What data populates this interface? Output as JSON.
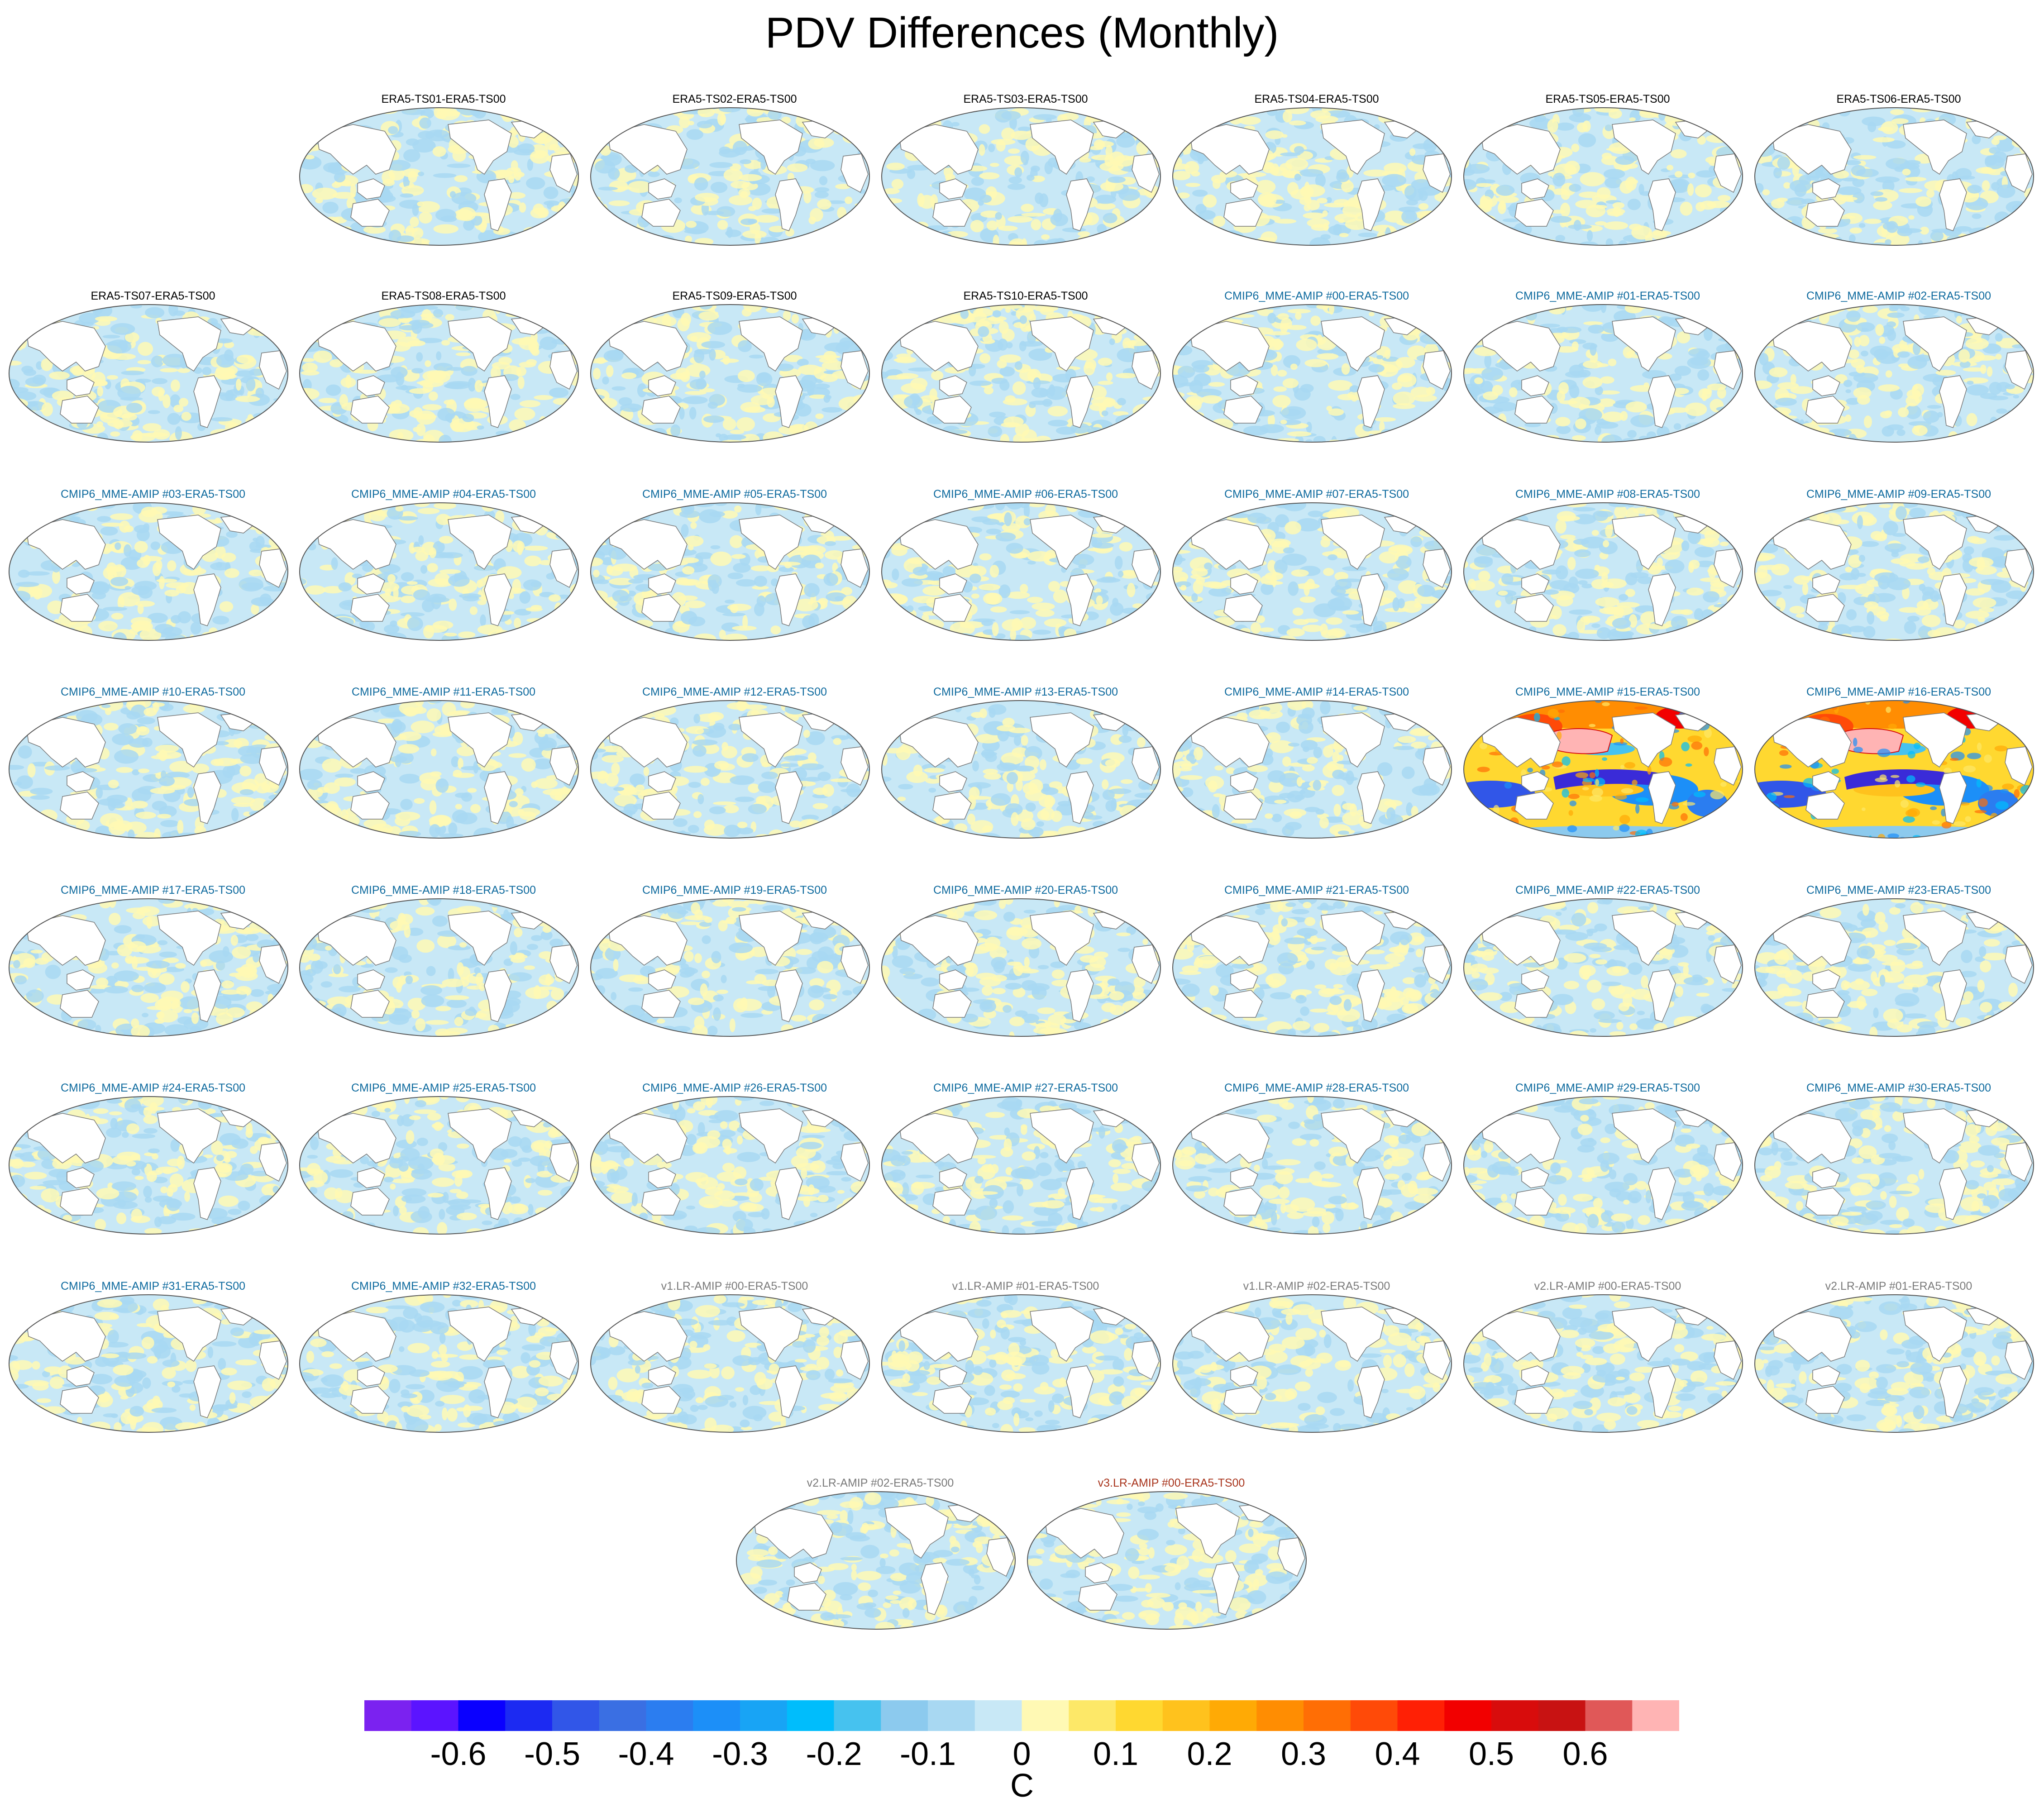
{
  "chart_data": {
    "type": "heatmap",
    "title": "PDV Differences (Monthly)",
    "projection": "Robinson (Pacific-centered global map)",
    "variable": "PDV difference",
    "units": "C",
    "colorbar": {
      "tick_labels": [
        "-0.6",
        "-0.5",
        "-0.4",
        "-0.3",
        "-0.2",
        "-0.1",
        "0",
        "0.1",
        "0.2",
        "0.3",
        "0.4",
        "0.5",
        "0.6"
      ],
      "colors": [
        "#7b22f0",
        "#5b14ff",
        "#0a00ff",
        "#1c2af2",
        "#3156e8",
        "#3a6fe3",
        "#2b7df0",
        "#1c8ff8",
        "#18a4f5",
        "#00bdfc",
        "#46c2ef",
        "#8ccaee",
        "#a8d8f2",
        "#c8e8f6",
        "#fff9b4",
        "#fde868",
        "#ffd830",
        "#ffc21d",
        "#ffaa05",
        "#ff8d02",
        "#ff6e05",
        "#ff4a08",
        "#ff2005",
        "#f20000",
        "#d80c0c",
        "#c81212",
        "#e05858",
        "#ffb4b4"
      ]
    },
    "panels": [
      {
        "label": "ERA5-TS01-ERA5-TS00",
        "group": "era5",
        "pattern": "noise"
      },
      {
        "label": "ERA5-TS02-ERA5-TS00",
        "group": "era5",
        "pattern": "noise"
      },
      {
        "label": "ERA5-TS03-ERA5-TS00",
        "group": "era5",
        "pattern": "noise"
      },
      {
        "label": "ERA5-TS04-ERA5-TS00",
        "group": "era5",
        "pattern": "noise"
      },
      {
        "label": "ERA5-TS05-ERA5-TS00",
        "group": "era5",
        "pattern": "noise"
      },
      {
        "label": "ERA5-TS06-ERA5-TS00",
        "group": "era5",
        "pattern": "noise"
      },
      {
        "label": "ERA5-TS07-ERA5-TS00",
        "group": "era5",
        "pattern": "noise"
      },
      {
        "label": "ERA5-TS08-ERA5-TS00",
        "group": "era5",
        "pattern": "noise"
      },
      {
        "label": "ERA5-TS09-ERA5-TS00",
        "group": "era5",
        "pattern": "noise"
      },
      {
        "label": "ERA5-TS10-ERA5-TS00",
        "group": "era5",
        "pattern": "noise"
      },
      {
        "label": "CMIP6_MME-AMIP  #00-ERA5-TS00",
        "group": "cmip6",
        "pattern": "noise"
      },
      {
        "label": "CMIP6_MME-AMIP  #01-ERA5-TS00",
        "group": "cmip6",
        "pattern": "noise"
      },
      {
        "label": "CMIP6_MME-AMIP  #02-ERA5-TS00",
        "group": "cmip6",
        "pattern": "noise"
      },
      {
        "label": "CMIP6_MME-AMIP  #03-ERA5-TS00",
        "group": "cmip6",
        "pattern": "noise"
      },
      {
        "label": "CMIP6_MME-AMIP  #04-ERA5-TS00",
        "group": "cmip6",
        "pattern": "noise"
      },
      {
        "label": "CMIP6_MME-AMIP  #05-ERA5-TS00",
        "group": "cmip6",
        "pattern": "noise"
      },
      {
        "label": "CMIP6_MME-AMIP  #06-ERA5-TS00",
        "group": "cmip6",
        "pattern": "noise"
      },
      {
        "label": "CMIP6_MME-AMIP  #07-ERA5-TS00",
        "group": "cmip6",
        "pattern": "noise"
      },
      {
        "label": "CMIP6_MME-AMIP  #08-ERA5-TS00",
        "group": "cmip6",
        "pattern": "noise"
      },
      {
        "label": "CMIP6_MME-AMIP  #09-ERA5-TS00",
        "group": "cmip6",
        "pattern": "noise"
      },
      {
        "label": "CMIP6_MME-AMIP  #10-ERA5-TS00",
        "group": "cmip6",
        "pattern": "noise"
      },
      {
        "label": "CMIP6_MME-AMIP  #11-ERA5-TS00",
        "group": "cmip6",
        "pattern": "noise"
      },
      {
        "label": "CMIP6_MME-AMIP  #12-ERA5-TS00",
        "group": "cmip6",
        "pattern": "noise"
      },
      {
        "label": "CMIP6_MME-AMIP  #13-ERA5-TS00",
        "group": "cmip6",
        "pattern": "noise"
      },
      {
        "label": "CMIP6_MME-AMIP  #14-ERA5-TS00",
        "group": "cmip6",
        "pattern": "noise"
      },
      {
        "label": "CMIP6_MME-AMIP  #15-ERA5-TS00",
        "group": "cmip6",
        "pattern": "strong"
      },
      {
        "label": "CMIP6_MME-AMIP  #16-ERA5-TS00",
        "group": "cmip6",
        "pattern": "strong"
      },
      {
        "label": "CMIP6_MME-AMIP  #17-ERA5-TS00",
        "group": "cmip6",
        "pattern": "noise"
      },
      {
        "label": "CMIP6_MME-AMIP  #18-ERA5-TS00",
        "group": "cmip6",
        "pattern": "noise"
      },
      {
        "label": "CMIP6_MME-AMIP  #19-ERA5-TS00",
        "group": "cmip6",
        "pattern": "noise"
      },
      {
        "label": "CMIP6_MME-AMIP  #20-ERA5-TS00",
        "group": "cmip6",
        "pattern": "noise"
      },
      {
        "label": "CMIP6_MME-AMIP  #21-ERA5-TS00",
        "group": "cmip6",
        "pattern": "noise"
      },
      {
        "label": "CMIP6_MME-AMIP  #22-ERA5-TS00",
        "group": "cmip6",
        "pattern": "noise"
      },
      {
        "label": "CMIP6_MME-AMIP  #23-ERA5-TS00",
        "group": "cmip6",
        "pattern": "noise"
      },
      {
        "label": "CMIP6_MME-AMIP  #24-ERA5-TS00",
        "group": "cmip6",
        "pattern": "noise"
      },
      {
        "label": "CMIP6_MME-AMIP  #25-ERA5-TS00",
        "group": "cmip6",
        "pattern": "noise"
      },
      {
        "label": "CMIP6_MME-AMIP  #26-ERA5-TS00",
        "group": "cmip6",
        "pattern": "noise"
      },
      {
        "label": "CMIP6_MME-AMIP  #27-ERA5-TS00",
        "group": "cmip6",
        "pattern": "noise"
      },
      {
        "label": "CMIP6_MME-AMIP  #28-ERA5-TS00",
        "group": "cmip6",
        "pattern": "noise"
      },
      {
        "label": "CMIP6_MME-AMIP  #29-ERA5-TS00",
        "group": "cmip6",
        "pattern": "noise"
      },
      {
        "label": "CMIP6_MME-AMIP  #30-ERA5-TS00",
        "group": "cmip6",
        "pattern": "noise"
      },
      {
        "label": "CMIP6_MME-AMIP  #31-ERA5-TS00",
        "group": "cmip6",
        "pattern": "noise"
      },
      {
        "label": "CMIP6_MME-AMIP  #32-ERA5-TS00",
        "group": "cmip6",
        "pattern": "noise"
      },
      {
        "label": "v1.LR-AMIP  #00-ERA5-TS00",
        "group": "v12",
        "pattern": "noise"
      },
      {
        "label": "v1.LR-AMIP  #01-ERA5-TS00",
        "group": "v12",
        "pattern": "noise"
      },
      {
        "label": "v1.LR-AMIP  #02-ERA5-TS00",
        "group": "v12",
        "pattern": "noise"
      },
      {
        "label": "v2.LR-AMIP  #00-ERA5-TS00",
        "group": "v12",
        "pattern": "noise"
      },
      {
        "label": "v2.LR-AMIP  #01-ERA5-TS00",
        "group": "v12",
        "pattern": "noise"
      },
      {
        "label": "v2.LR-AMIP  #02-ERA5-TS00",
        "group": "v12",
        "pattern": "noise"
      },
      {
        "label": "v3.LR-AMIP  #00-ERA5-TS00",
        "group": "v3",
        "pattern": "noise"
      }
    ],
    "label_colors": {
      "era5": "#000000",
      "cmip6": "#0e6a9e",
      "v12": "#7a7a7a",
      "v3": "#a8341c"
    },
    "land_color": "#ffffff",
    "coastline_color": "#777777"
  }
}
